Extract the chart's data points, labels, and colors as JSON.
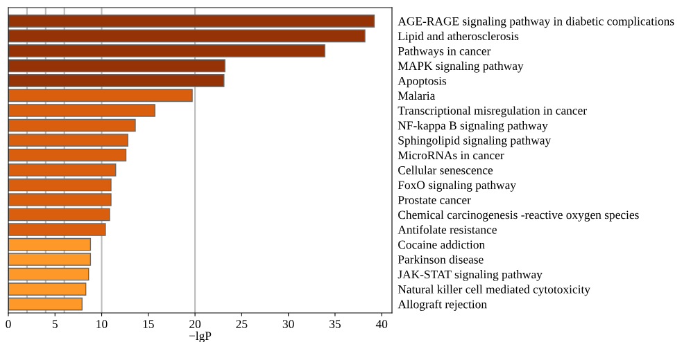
{
  "chart_data": {
    "type": "bar",
    "orientation": "horizontal",
    "xlabel": "−lgP",
    "categories": [
      "AGE-RAGE signaling pathway in diabetic complications",
      "Lipid and atherosclerosis",
      "Pathways in cancer",
      "MAPK signaling pathway",
      "Apoptosis",
      "Malaria",
      "Transcriptional misregulation in cancer",
      "NF-kappa B signaling pathway",
      "Sphingolipid signaling pathway",
      "MicroRNAs in cancer",
      "Cellular senescence",
      "FoxO signaling pathway",
      "Prostate cancer",
      "Chemical carcinogenesis -reactive oxygen species",
      "Antifolate resistance",
      "Cocaine addiction",
      "Parkinson disease",
      "JAK-STAT signaling pathway",
      "Natural killer cell mediated cytotoxicity",
      "Allograft rejection"
    ],
    "values": [
      39.2,
      38.2,
      33.9,
      23.2,
      23.1,
      19.7,
      15.7,
      13.6,
      12.8,
      12.6,
      11.5,
      11.0,
      11.0,
      10.85,
      10.4,
      8.8,
      8.8,
      8.6,
      8.3,
      7.9
    ],
    "colors": [
      "#963306",
      "#963306",
      "#963306",
      "#963306",
      "#963306",
      "#d95f0e",
      "#d95f0e",
      "#d95f0e",
      "#d95f0e",
      "#d95f0e",
      "#d95f0e",
      "#d95f0e",
      "#d95f0e",
      "#d95f0e",
      "#d95f0e",
      "#fe9929",
      "#fe9929",
      "#fe9929",
      "#fe9929",
      "#fe9929"
    ],
    "xlim": [
      0,
      41.1
    ],
    "xticks": [
      0,
      5,
      10,
      15,
      20,
      25,
      30,
      35,
      40
    ],
    "ref_lines": [
      {
        "axis": "x",
        "value": 2,
        "color": "#bbbbbb"
      },
      {
        "axis": "x",
        "value": 4,
        "color": "#bbbbbb"
      },
      {
        "axis": "x",
        "value": 6,
        "color": "#bbbbbb"
      },
      {
        "axis": "x",
        "value": 10,
        "color": "#bbbbbb"
      },
      {
        "axis": "x",
        "value": 20,
        "color": "#bbbbbb"
      }
    ]
  }
}
